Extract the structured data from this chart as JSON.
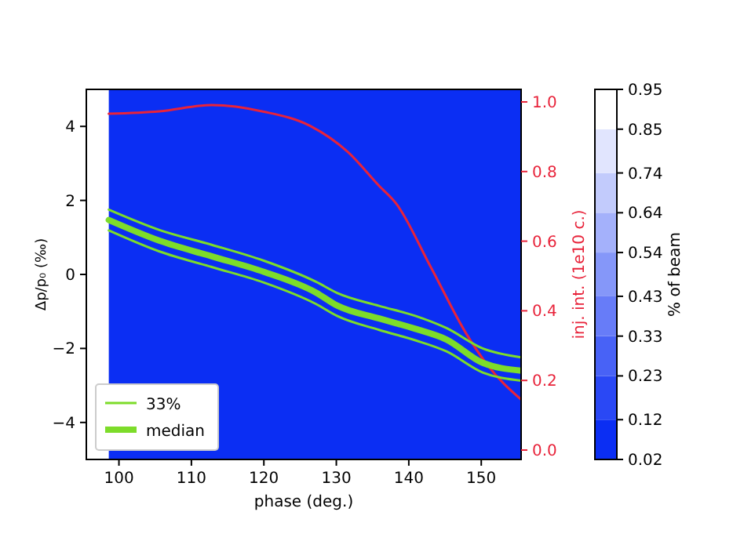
{
  "chart_data": {
    "type": "line",
    "xlabel": "phase (deg.)",
    "ylabel": "Δp/p₀ (‰)",
    "y2label": "inj. int. (1e10 c.)",
    "clabel": "% of beam",
    "xlim": [
      95.5,
      155.5
    ],
    "xticks": [
      100,
      110,
      120,
      130,
      140,
      150
    ],
    "ylim": [
      -5,
      5
    ],
    "yticks": [
      {
        "value": -4,
        "label": "−4"
      },
      {
        "value": -2,
        "label": "−2"
      },
      0,
      2,
      4
    ],
    "y2lim": [
      -0.027,
      1.036
    ],
    "y2ticks": [
      {
        "value": 0,
        "label": "0.0"
      },
      {
        "value": 0.2,
        "label": "0.2"
      },
      {
        "value": 0.4,
        "label": "0.4"
      },
      {
        "value": 0.6,
        "label": "0.6"
      },
      {
        "value": 0.8,
        "label": "0.8"
      },
      {
        "value": 1,
        "label": "1.0"
      }
    ],
    "clim": [
      0.02,
      0.95
    ],
    "cticks": [
      0.02,
      0.12,
      0.23,
      0.33,
      0.43,
      0.54,
      0.64,
      0.74,
      0.85,
      0.95
    ],
    "legend": "bottom left",
    "grid": false,
    "bands": [
      {
        "axis": "x",
        "from": 98.6,
        "to": 155.5,
        "color": "#0b2ef3"
      }
    ],
    "series": [
      {
        "axis": "y2",
        "color": "#e8233a",
        "x": [
          98.6,
          105.6,
          112.8,
          120,
          126.4,
          131.6,
          135.9,
          138.3,
          143,
          148,
          150.9,
          155.5
        ],
        "values": [
          0.966,
          0.973,
          0.991,
          0.972,
          0.931,
          0.856,
          0.759,
          0.707,
          0.527,
          0.332,
          0.243,
          0.145
        ]
      },
      {
        "name": "33%",
        "color": "#7ddc2a",
        "x": [
          98.6,
          105.6,
          112.8,
          120,
          127.2,
          130.1,
          135.9,
          140.9,
          145.2,
          150.2,
          155.5
        ],
        "values": [
          1.75,
          1.2,
          0.8,
          0.37,
          -0.2,
          -0.5,
          -0.85,
          -1.12,
          -1.45,
          -2.0,
          -2.24
        ]
      },
      {
        "name": "median",
        "color": "#7ddc2a",
        "x": [
          98.6,
          105.6,
          112.8,
          120,
          127.2,
          130.1,
          135.9,
          140.9,
          145.2,
          150.2,
          155.5
        ],
        "values": [
          1.47,
          0.91,
          0.49,
          0.07,
          -0.49,
          -0.84,
          -1.19,
          -1.47,
          -1.76,
          -2.39,
          -2.6
        ]
      },
      {
        "color": "#7ddc2a",
        "x": [
          98.6,
          105.6,
          112.8,
          120,
          127.2,
          130.1,
          135.9,
          140.9,
          145.2,
          150.2,
          155.5
        ],
        "values": [
          1.19,
          0.62,
          0.2,
          -0.22,
          -0.8,
          -1.12,
          -1.5,
          -1.78,
          -2.08,
          -2.65,
          -2.87
        ]
      }
    ]
  }
}
